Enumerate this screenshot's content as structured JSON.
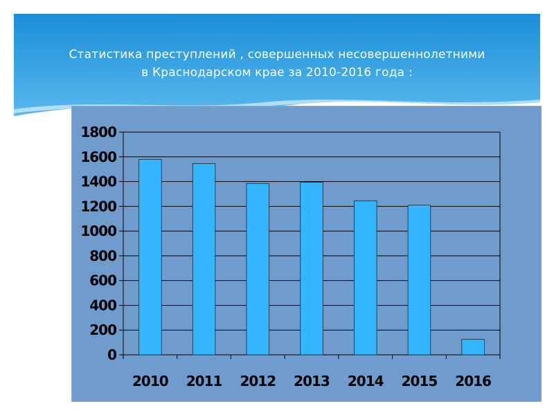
{
  "slide": {
    "title_line1": "Статистика преступлений , совершенных несовершеннолетними",
    "title_line2": "в Краснодарском крае за 2010-2016 года :"
  },
  "colors": {
    "banner_top": "#1a8fd8",
    "banner_bottom": "#5ab8ee",
    "panel": "#6f9ccc",
    "bar_fill": "#33b5ff",
    "bar_stroke": "#1b2a3a",
    "gridline": "#000000"
  },
  "chart_data": {
    "type": "bar",
    "categories": [
      "2010",
      "2011",
      "2012",
      "2013",
      "2014",
      "2015",
      "2016"
    ],
    "values": [
      1580,
      1545,
      1385,
      1395,
      1245,
      1210,
      125
    ],
    "ylim": [
      0,
      1800
    ],
    "yticks": [
      "0",
      "200",
      "400",
      "600",
      "800",
      "1000",
      "1200",
      "1400",
      "1600",
      "1800"
    ],
    "grid": true,
    "legend": "none"
  }
}
